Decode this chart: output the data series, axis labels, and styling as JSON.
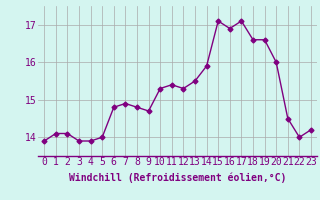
{
  "x": [
    0,
    1,
    2,
    3,
    4,
    5,
    6,
    7,
    8,
    9,
    10,
    11,
    12,
    13,
    14,
    15,
    16,
    17,
    18,
    19,
    20,
    21,
    22,
    23
  ],
  "y": [
    13.9,
    14.1,
    14.1,
    13.9,
    13.9,
    14.0,
    14.8,
    14.9,
    14.8,
    14.7,
    15.3,
    15.4,
    15.3,
    15.5,
    15.9,
    17.1,
    16.9,
    17.1,
    16.6,
    16.6,
    16.0,
    14.5,
    14.0,
    14.2
  ],
  "line_color": "#800080",
  "marker": "D",
  "marker_size": 2.5,
  "bg_color": "#d4f5f0",
  "grid_color": "#aaaaaa",
  "xlabel": "Windchill (Refroidissement éolien,°C)",
  "xlabel_fontsize": 7,
  "tick_fontsize": 7,
  "ylim": [
    13.5,
    17.5
  ],
  "yticks": [
    14,
    15,
    16,
    17
  ],
  "xlim": [
    -0.5,
    23.5
  ],
  "linewidth": 1.0
}
